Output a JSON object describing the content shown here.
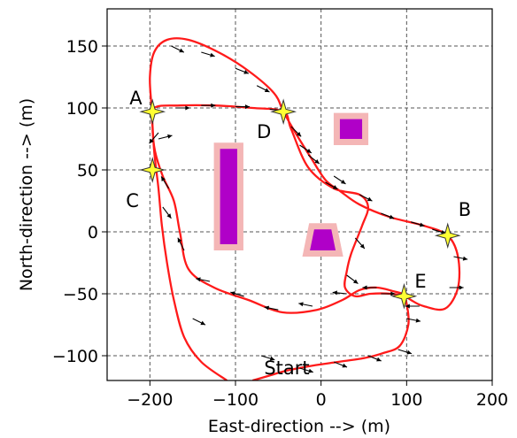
{
  "chart_data": {
    "type": "scatter",
    "xlabel": "East-direction --> (m)",
    "ylabel": "North-direction --> (m)",
    "xlim": [
      -250,
      200
    ],
    "ylim": [
      -120,
      180
    ],
    "xticks": [
      -200,
      -100,
      0,
      100,
      200
    ],
    "yticks": [
      -100,
      -50,
      0,
      50,
      100,
      150
    ],
    "xtick_labels": [
      "−200",
      "−100",
      "0",
      "100",
      "200"
    ],
    "ytick_labels": [
      "−100",
      "−50",
      "0",
      "50",
      "100",
      "150"
    ],
    "grid": true,
    "colors": {
      "path": "#ff1a1a",
      "obstacle": "#b000c8",
      "buffer": "#f4b6b6",
      "star": "#ffff33",
      "arrow": "#000000"
    },
    "path": [
      [
        -110,
        -120
      ],
      [
        -140,
        -105
      ],
      [
        -160,
        -85
      ],
      [
        -172,
        -55
      ],
      [
        -180,
        -25
      ],
      [
        -186,
        5
      ],
      [
        -190,
        35
      ],
      [
        -195,
        65
      ],
      [
        -198,
        100
      ],
      [
        -200,
        125
      ],
      [
        -195,
        145
      ],
      [
        -180,
        155
      ],
      [
        -155,
        155
      ],
      [
        -120,
        145
      ],
      [
        -85,
        130
      ],
      [
        -55,
        112
      ],
      [
        -44,
        97
      ],
      [
        -30,
        80
      ],
      [
        -12,
        60
      ],
      [
        5,
        42
      ],
      [
        22,
        33
      ],
      [
        45,
        22
      ],
      [
        80,
        12
      ],
      [
        120,
        5
      ],
      [
        148,
        -3
      ],
      [
        160,
        -20
      ],
      [
        160,
        -45
      ],
      [
        145,
        -62
      ],
      [
        120,
        -60
      ],
      [
        105,
        -55
      ],
      [
        95,
        -50
      ],
      [
        85,
        -48
      ],
      [
        65,
        -45
      ],
      [
        45,
        -47
      ],
      [
        25,
        -55
      ],
      [
        -5,
        -63
      ],
      [
        -45,
        -65
      ],
      [
        -85,
        -55
      ],
      [
        -125,
        -45
      ],
      [
        -155,
        -30
      ],
      [
        -165,
        0
      ],
      [
        -172,
        25
      ],
      [
        -185,
        45
      ],
      [
        -194,
        65
      ],
      [
        -197,
        85
      ],
      [
        -195,
        100
      ],
      [
        -165,
        102
      ],
      [
        -125,
        102
      ],
      [
        -80,
        100
      ],
      [
        -44,
        97
      ],
      [
        -35,
        83
      ],
      [
        -15,
        52
      ],
      [
        15,
        35
      ],
      [
        45,
        30
      ],
      [
        55,
        20
      ],
      [
        48,
        5
      ],
      [
        35,
        -18
      ],
      [
        30,
        -32
      ],
      [
        28,
        -45
      ],
      [
        40,
        -52
      ],
      [
        58,
        -50
      ],
      [
        82,
        -50
      ],
      [
        96,
        -52
      ],
      [
        100,
        -58
      ],
      [
        102,
        -75
      ],
      [
        92,
        -92
      ],
      [
        72,
        -98
      ],
      [
        50,
        -102
      ],
      [
        20,
        -105
      ],
      [
        -10,
        -108
      ],
      [
        -40,
        -112
      ],
      [
        -60,
        -116
      ],
      [
        -80,
        -120
      ]
    ],
    "waypoints": [
      {
        "label": "A",
        "x": -197,
        "y": 97
      },
      {
        "label": "B",
        "x": 148,
        "y": -3
      },
      {
        "label": "C",
        "x": -197,
        "y": 50
      },
      {
        "label": "D",
        "x": -44,
        "y": 97
      },
      {
        "label": "E",
        "x": 97,
        "y": -52
      }
    ],
    "obstacles": [
      {
        "name": "bar",
        "polygon": [
          [
            -118,
            -10
          ],
          [
            -98,
            -10
          ],
          [
            -98,
            67
          ],
          [
            -118,
            67
          ]
        ]
      },
      {
        "name": "square",
        "polygon": [
          [
            22,
            75
          ],
          [
            48,
            75
          ],
          [
            48,
            91
          ],
          [
            22,
            91
          ]
        ]
      },
      {
        "name": "trapezoid",
        "polygon": [
          [
            -13,
            -15
          ],
          [
            17,
            -15
          ],
          [
            12,
            2
          ],
          [
            -8,
            2
          ]
        ]
      }
    ],
    "arrows": [
      {
        "x": -175,
        "y": 150,
        "dx": 10,
        "dy": -5
      },
      {
        "x": -140,
        "y": 145,
        "dx": 10,
        "dy": -3
      },
      {
        "x": -100,
        "y": 132,
        "dx": 10,
        "dy": -4
      },
      {
        "x": -75,
        "y": 118,
        "dx": 10,
        "dy": -5
      },
      {
        "x": -35,
        "y": 85,
        "dx": 8,
        "dy": -8
      },
      {
        "x": -15,
        "y": 62,
        "dx": 9,
        "dy": -7
      },
      {
        "x": 15,
        "y": 45,
        "dx": 9,
        "dy": -6
      },
      {
        "x": 45,
        "y": 30,
        "dx": 10,
        "dy": -5
      },
      {
        "x": 70,
        "y": 15,
        "dx": 10,
        "dy": -4
      },
      {
        "x": 105,
        "y": 8,
        "dx": 10,
        "dy": -3
      },
      {
        "x": 130,
        "y": 2,
        "dx": 10,
        "dy": -3
      },
      {
        "x": 155,
        "y": -20,
        "dx": 10,
        "dy": -2
      },
      {
        "x": 150,
        "y": -45,
        "dx": 10,
        "dy": 0
      },
      {
        "x": 115,
        "y": -60,
        "dx": -10,
        "dy": 0
      },
      {
        "x": 65,
        "y": -45,
        "dx": -10,
        "dy": 0
      },
      {
        "x": 30,
        "y": -50,
        "dx": -10,
        "dy": 1
      },
      {
        "x": -10,
        "y": -60,
        "dx": -10,
        "dy": 2
      },
      {
        "x": -50,
        "y": -63,
        "dx": -10,
        "dy": 2
      },
      {
        "x": -90,
        "y": -52,
        "dx": -10,
        "dy": 3
      },
      {
        "x": -130,
        "y": -40,
        "dx": -10,
        "dy": 2
      },
      {
        "x": -160,
        "y": -15,
        "dx": -4,
        "dy": 8
      },
      {
        "x": -178,
        "y": 35,
        "dx": -5,
        "dy": 8
      },
      {
        "x": -190,
        "y": 75,
        "dx": 8,
        "dy": 2
      },
      {
        "x": -170,
        "y": 100,
        "dx": 10,
        "dy": 0
      },
      {
        "x": -140,
        "y": 102,
        "dx": 10,
        "dy": 0
      },
      {
        "x": -100,
        "y": 101,
        "dx": 10,
        "dy": 0
      },
      {
        "x": -60,
        "y": 99,
        "dx": 10,
        "dy": -1
      },
      {
        "x": -25,
        "y": 70,
        "dx": 9,
        "dy": -6
      },
      {
        "x": 5,
        "y": 40,
        "dx": 9,
        "dy": -5
      },
      {
        "x": 40,
        "y": -5,
        "dx": 7,
        "dy": -8
      },
      {
        "x": 30,
        "y": -35,
        "dx": 8,
        "dy": -6
      },
      {
        "x": 70,
        "y": -50,
        "dx": 10,
        "dy": 0
      },
      {
        "x": 100,
        "y": -70,
        "dx": 10,
        "dy": -2
      },
      {
        "x": 90,
        "y": -95,
        "dx": 10,
        "dy": -3
      },
      {
        "x": 55,
        "y": -100,
        "dx": 10,
        "dy": -4
      },
      {
        "x": 15,
        "y": -105,
        "dx": 10,
        "dy": -4
      },
      {
        "x": -25,
        "y": -110,
        "dx": 10,
        "dy": -3
      },
      {
        "x": -190,
        "y": 80,
        "dx": -6,
        "dy": -7
      },
      {
        "x": -185,
        "y": 20,
        "dx": 6,
        "dy": -8
      },
      {
        "x": -150,
        "y": -70,
        "dx": 10,
        "dy": -5
      },
      {
        "x": -70,
        "y": -100,
        "dx": 10,
        "dy": -3
      }
    ],
    "annotations": [
      {
        "text": "Start",
        "x": -40,
        "y": -115
      }
    ]
  }
}
